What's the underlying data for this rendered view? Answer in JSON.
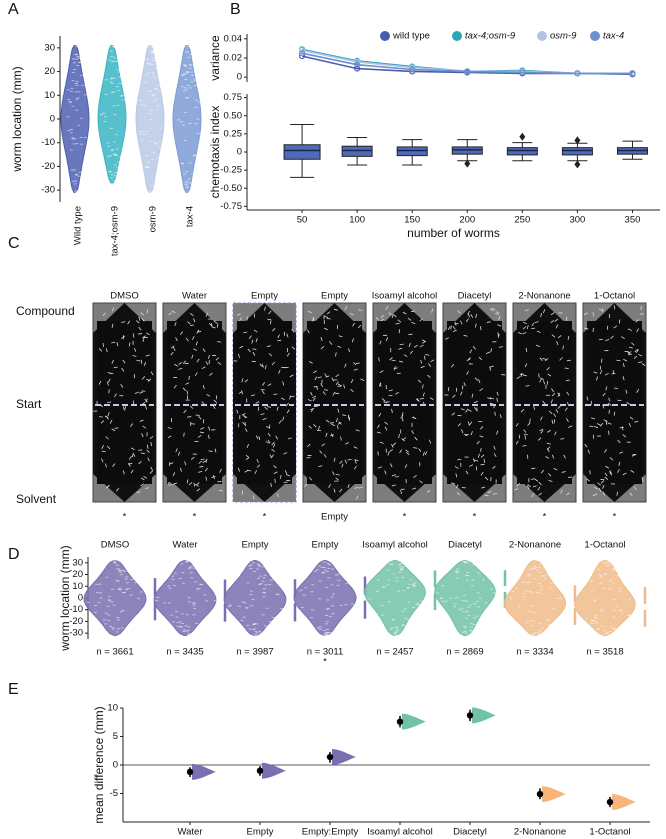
{
  "panel_labels": [
    "A",
    "B",
    "C",
    "D",
    "E"
  ],
  "panel_c": {
    "row_labels": [
      "Compound",
      "Start",
      "Solvent"
    ],
    "plates": [
      "DMSO",
      "Water",
      "Empty",
      "Empty",
      "Isoamyl alcohol",
      "Diacetyl",
      "2-Nonanone",
      "1-Octanol"
    ],
    "marks": [
      "*",
      "*",
      "*",
      "Empty",
      "*",
      "*",
      "*",
      "*"
    ]
  },
  "chart_data": [
    {
      "type": "swarm",
      "ylabel": "worm location (mm)",
      "categories": [
        "Wild type",
        "tax-4;osm-9",
        "osm-9",
        "tax-4"
      ],
      "colors": [
        "#4f5fb0",
        "#3bb5c3",
        "#b9c9e8",
        "#7d9bd6"
      ],
      "mins": [
        -31,
        -27,
        -31,
        -31
      ],
      "maxs": [
        31,
        31,
        31,
        31
      ],
      "ylim": [
        -35,
        35
      ],
      "yticks": [
        -30,
        -20,
        -10,
        0,
        10,
        20,
        30
      ]
    },
    {
      "type": "line",
      "ylabel": "variance",
      "legend": "top",
      "x": [
        50,
        100,
        150,
        200,
        250,
        300,
        350
      ],
      "xlim": [
        0,
        375
      ],
      "ylim": [
        -0.005,
        0.045
      ],
      "yticks": [
        0,
        0.02,
        0.04
      ],
      "series": [
        {
          "name": "wild type",
          "color": "#4a5cae",
          "values": [
            0.022,
            0.009,
            0.006,
            0.005,
            0.004,
            0.004,
            0.003
          ]
        },
        {
          "name": "tax-4;osm-9",
          "color": "#2aa6b8",
          "values": [
            0.029,
            0.017,
            0.011,
            0.006,
            0.007,
            0.004,
            0.004
          ]
        },
        {
          "name": "osm-9",
          "color": "#b3c3e6",
          "values": [
            0.028,
            0.016,
            0.01,
            0.006,
            0.006,
            0.004,
            0.004
          ]
        },
        {
          "name": "tax-4",
          "color": "#6f8fcf",
          "values": [
            0.025,
            0.013,
            0.008,
            0.006,
            0.005,
            0.004,
            0.004
          ]
        }
      ]
    },
    {
      "type": "box",
      "ylabel": "chemotaxis index",
      "xlabel": "number of worms",
      "color": "#4f6bb8",
      "x": [
        50,
        100,
        150,
        200,
        250,
        300,
        350
      ],
      "xlim": [
        0,
        375
      ],
      "xticks": [
        50,
        100,
        150,
        200,
        250,
        300,
        350
      ],
      "ylim": [
        -0.8,
        0.8
      ],
      "yticks": [
        -0.75,
        {
          "value": -0.5,
          "label": "-0.50"
        },
        -0.25,
        0,
        0.25,
        {
          "value": 0.5,
          "label": "0.50"
        },
        0.75
      ],
      "whislo": [
        -0.35,
        -0.18,
        -0.18,
        -0.12,
        -0.12,
        -0.12,
        -0.1
      ],
      "q1": [
        -0.1,
        -0.06,
        -0.05,
        -0.03,
        -0.04,
        -0.04,
        -0.03
      ],
      "median": [
        0.02,
        0.02,
        0.02,
        0.03,
        0.02,
        0.02,
        0.02
      ],
      "q3": [
        0.1,
        0.08,
        0.07,
        0.07,
        0.06,
        0.06,
        0.06
      ],
      "whishi": [
        0.38,
        0.2,
        0.17,
        0.17,
        0.13,
        0.12,
        0.15
      ],
      "outliers": [
        [],
        [],
        [],
        [
          -0.16
        ],
        [
          0.21
        ],
        [
          0.16,
          -0.17
        ],
        []
      ]
    },
    {
      "type": "swarm",
      "ylabel": "worm location (mm)",
      "categories": [
        "DMSO",
        "Water",
        "Empty",
        "Empty",
        "Isoamyl alcohol",
        "Diacetyl",
        "2-Nonanone",
        "1-Octanol"
      ],
      "colors": [
        "#7a6fb0",
        "#7a6fb0",
        "#7a6fb0",
        "#7a6fb0",
        "#72c2a8",
        "#72c2a8",
        "#f0bb8a",
        "#f0bb8a"
      ],
      "mins": [
        -32,
        -32,
        -32,
        -32,
        -32,
        -32,
        -32,
        -32
      ],
      "maxs": [
        32,
        32,
        32,
        32,
        32,
        32,
        32,
        32
      ],
      "means": [
        -1,
        -2.2,
        -2,
        0.4,
        6.6,
        7.7,
        -6.1,
        -7.5
      ],
      "sds": [
        18,
        18,
        18,
        18,
        17,
        16,
        17,
        17
      ],
      "n_labels": [
        "n = 3661",
        "n = 3435",
        "n = 3987",
        "n = 3011",
        "n = 2457",
        "n = 2869",
        "n = 3334",
        "n = 3518"
      ],
      "notes": [
        null,
        null,
        null,
        "*",
        null,
        null,
        null,
        null
      ],
      "ylim": [
        -35,
        35
      ],
      "yticks": [
        -30,
        -20,
        -10,
        0,
        10,
        20,
        30
      ]
    },
    {
      "type": "estimation",
      "ylabel": "mean difference (mm)",
      "categories": [
        "Water",
        "Empty",
        "Empty:Empty",
        "Isoamyl alcohol",
        "Diacetyl",
        "2-Nonanone",
        "1-Octanol"
      ],
      "colors": [
        "#7a6fb0",
        "#7a6fb0",
        "#7a6fb0",
        "#72c2a8",
        "#72c2a8",
        "#f7b57a",
        "#f7b57a"
      ],
      "values": [
        -1.2,
        -1.0,
        1.4,
        7.6,
        8.7,
        -5.1,
        -6.5
      ],
      "ci_low": [
        -2.1,
        -1.9,
        0.4,
        6.6,
        7.7,
        -6.0,
        -7.4
      ],
      "ci_high": [
        -0.4,
        -0.2,
        2.3,
        8.6,
        9.7,
        -4.1,
        -5.6
      ],
      "ylim": [
        -10,
        10
      ],
      "yticks": [
        -5,
        0,
        5,
        10
      ]
    }
  ]
}
